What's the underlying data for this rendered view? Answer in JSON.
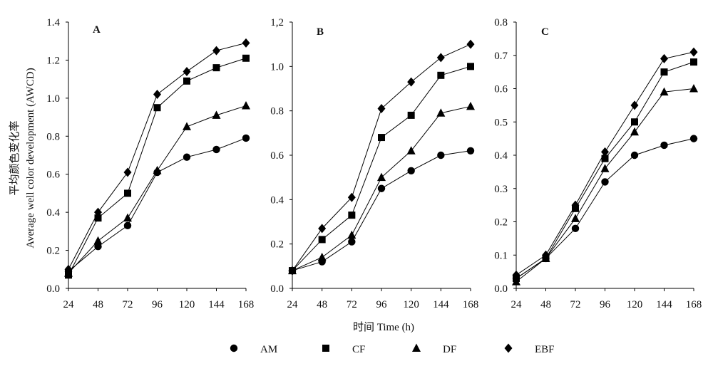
{
  "chart_data": [
    {
      "type": "line",
      "panel_label": "A",
      "x": [
        24,
        48,
        72,
        96,
        120,
        144,
        168
      ],
      "ylim": [
        0,
        1.4
      ],
      "yticks": [
        "0.0",
        "0.2",
        "0.4",
        "0.6",
        "0.8",
        "1.0",
        "1.2",
        "1.4"
      ],
      "series": [
        {
          "name": "AM",
          "marker": "circle",
          "values": [
            0.09,
            0.22,
            0.33,
            0.61,
            0.69,
            0.73,
            0.79
          ]
        },
        {
          "name": "CF",
          "marker": "square",
          "values": [
            0.07,
            0.37,
            0.5,
            0.95,
            1.09,
            1.16,
            1.21
          ]
        },
        {
          "name": "DF",
          "marker": "triangle",
          "values": [
            0.08,
            0.25,
            0.37,
            0.62,
            0.85,
            0.91,
            0.96
          ]
        },
        {
          "name": "EBF",
          "marker": "diamond",
          "values": [
            0.1,
            0.4,
            0.61,
            1.02,
            1.14,
            1.25,
            1.29
          ]
        }
      ]
    },
    {
      "type": "line",
      "panel_label": "B",
      "x": [
        24,
        48,
        72,
        96,
        120,
        144,
        168
      ],
      "ylim": [
        0,
        1.2
      ],
      "yticks": [
        "0.0",
        "0.2",
        "0.4",
        "0.6",
        "0.8",
        "1.0",
        "1,2"
      ],
      "series": [
        {
          "name": "AM",
          "marker": "circle",
          "values": [
            0.08,
            0.12,
            0.21,
            0.45,
            0.53,
            0.6,
            0.62
          ]
        },
        {
          "name": "CF",
          "marker": "square",
          "values": [
            0.08,
            0.22,
            0.33,
            0.68,
            0.78,
            0.96,
            1.0
          ]
        },
        {
          "name": "DF",
          "marker": "triangle",
          "values": [
            0.08,
            0.14,
            0.24,
            0.5,
            0.62,
            0.79,
            0.82
          ]
        },
        {
          "name": "EBF",
          "marker": "diamond",
          "values": [
            0.08,
            0.27,
            0.41,
            0.81,
            0.93,
            1.04,
            1.1
          ]
        }
      ]
    },
    {
      "type": "line",
      "panel_label": "C",
      "x": [
        24,
        48,
        72,
        96,
        120,
        144,
        168
      ],
      "ylim": [
        0,
        0.8
      ],
      "yticks": [
        "0.0",
        "0.1",
        "0.2",
        "0.3",
        "0.4",
        "0.5",
        "0.6",
        "0.7",
        "0.8"
      ],
      "series": [
        {
          "name": "AM",
          "marker": "circle",
          "values": [
            0.03,
            0.09,
            0.18,
            0.32,
            0.4,
            0.43,
            0.45
          ]
        },
        {
          "name": "CF",
          "marker": "square",
          "values": [
            0.03,
            0.09,
            0.24,
            0.39,
            0.5,
            0.65,
            0.68
          ]
        },
        {
          "name": "DF",
          "marker": "triangle",
          "values": [
            0.02,
            0.09,
            0.21,
            0.36,
            0.47,
            0.59,
            0.6
          ]
        },
        {
          "name": "EBF",
          "marker": "diamond",
          "values": [
            0.04,
            0.1,
            0.25,
            0.41,
            0.55,
            0.69,
            0.71
          ]
        }
      ]
    }
  ],
  "ylabel_cn": "平均颜色变化率",
  "ylabel_en": "Average well color development (AWCD)",
  "xlabel": "时间 Time (h)",
  "legend": [
    {
      "name": "AM",
      "marker": "circle"
    },
    {
      "name": "CF",
      "marker": "square"
    },
    {
      "name": "DF",
      "marker": "triangle"
    },
    {
      "name": "EBF",
      "marker": "diamond"
    }
  ]
}
